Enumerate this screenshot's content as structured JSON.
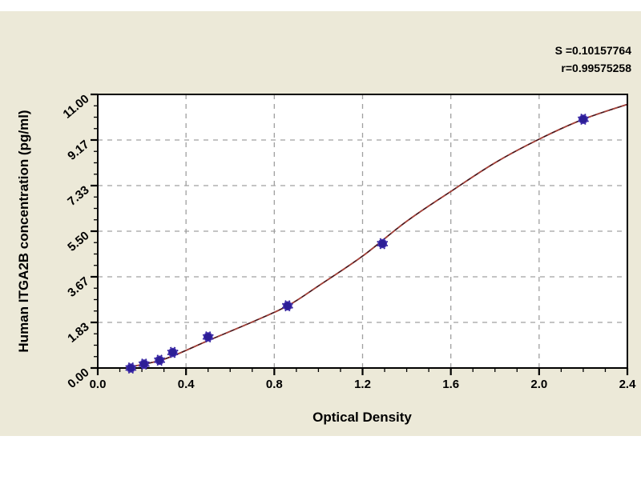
{
  "window": {
    "background": "#ffffff",
    "panel_color": "#ece9d8"
  },
  "stats": {
    "s_line": "S =0.10157764",
    "r_line": "r=0.99575258"
  },
  "chart_data": {
    "type": "scatter",
    "title": "",
    "xlabel": "Optical Density",
    "ylabel": "Human ITGA2B concentration (pg/ml)",
    "xlim": [
      0,
      2.4
    ],
    "ylim": [
      0,
      11
    ],
    "x_major_ticks": [
      0,
      0.4,
      0.8,
      1.2,
      1.6,
      2.0,
      2.4
    ],
    "x_tick_labels": [
      "0.0",
      "0.4",
      "0.8",
      "1.2",
      "1.6",
      "2.0",
      "2.4"
    ],
    "x_minor_step": 0.1,
    "y_major_ticks": [
      0,
      1.833,
      3.667,
      5.5,
      7.333,
      9.167,
      11
    ],
    "y_tick_labels": [
      "0.00",
      "1.83",
      "3.67",
      "5.50",
      "7.33",
      "9.17",
      "11.00"
    ],
    "y_minors_between": 3,
    "grid": {
      "show": true,
      "color": "#a0a0a0",
      "x_lines": [
        0.4,
        0.8,
        1.2,
        1.6,
        2.0
      ],
      "y_lines": [
        1.833,
        3.667,
        5.5,
        7.333,
        9.167
      ]
    },
    "series": [
      {
        "name": "standard-points",
        "marker": "star-circle",
        "color": "#2c1e96",
        "edge_color": "#4a35b5",
        "points": [
          [
            0.15,
            0
          ],
          [
            0.21,
            0.156
          ],
          [
            0.28,
            0.313
          ],
          [
            0.34,
            0.625
          ],
          [
            0.5,
            1.25
          ],
          [
            0.86,
            2.5
          ],
          [
            1.29,
            5.0
          ],
          [
            2.2,
            10.0
          ]
        ]
      }
    ],
    "curve": {
      "name": "fitted-curve",
      "color_dark": "#4a151a",
      "color_light": "#a8433a",
      "points": [
        [
          0.13,
          0.02
        ],
        [
          0.3,
          0.35
        ],
        [
          0.5,
          1.1
        ],
        [
          0.7,
          1.85
        ],
        [
          0.86,
          2.5
        ],
        [
          1.0,
          3.3
        ],
        [
          1.2,
          4.5
        ],
        [
          1.4,
          5.9
        ],
        [
          1.6,
          7.1
        ],
        [
          1.8,
          8.25
        ],
        [
          2.0,
          9.2
        ],
        [
          2.2,
          10.0
        ],
        [
          2.4,
          10.6
        ]
      ]
    }
  }
}
